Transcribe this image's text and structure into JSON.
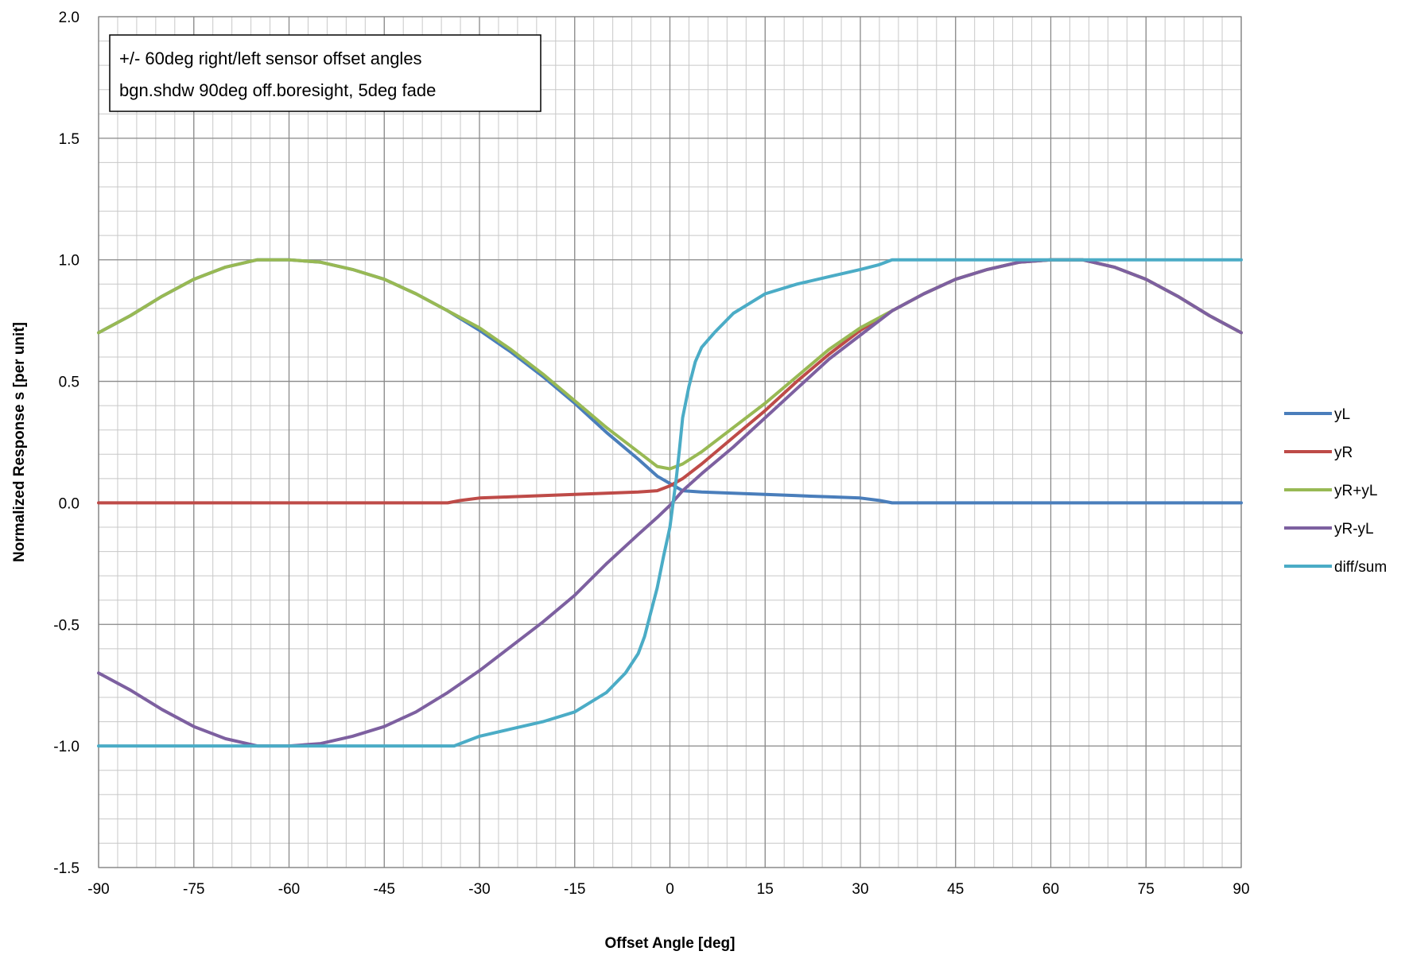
{
  "chart_data": {
    "type": "line",
    "title": "",
    "xlabel": "Offset Angle  [deg]",
    "ylabel": "Normalized Response s [per unit]",
    "xlim": [
      -90,
      90
    ],
    "ylim": [
      -1.5,
      2.0
    ],
    "x_ticks": [
      -90,
      -75,
      -60,
      -45,
      -30,
      -15,
      0,
      15,
      30,
      45,
      60,
      75,
      90
    ],
    "x_tick_labels": [
      "-90",
      "-75",
      "-60",
      "-45",
      "-30",
      "-15",
      "0",
      "15",
      "30",
      "45",
      "60",
      "75",
      "90"
    ],
    "y_ticks": [
      -1.5,
      -1.0,
      -0.5,
      0.0,
      0.5,
      1.0,
      1.5,
      2.0
    ],
    "y_tick_labels": [
      "-1.5",
      "-1.0",
      "-0.5",
      "0.0",
      "0.5",
      "1.0",
      "1.5",
      "2.0"
    ],
    "grid": true,
    "legend_position": "right",
    "annotation": [
      "+/- 60deg right/left sensor offset angles",
      "bgn.shdw 90deg off.boresight, 5deg fade"
    ],
    "series": [
      {
        "name": "yL",
        "color": "#4a7ebb",
        "x": [
          -90,
          -85,
          -80,
          -75,
          -70,
          -65,
          -60,
          -55,
          -50,
          -45,
          -40,
          -35,
          -30,
          -25,
          -20,
          -15,
          -10,
          -5,
          -2,
          0,
          2,
          5,
          10,
          15,
          20,
          25,
          30,
          33,
          35,
          40,
          50,
          60,
          70,
          80,
          90
        ],
        "y": [
          0.7,
          0.77,
          0.85,
          0.92,
          0.97,
          1.0,
          1.0,
          0.99,
          0.96,
          0.92,
          0.86,
          0.79,
          0.71,
          0.62,
          0.52,
          0.41,
          0.29,
          0.18,
          0.11,
          0.08,
          0.05,
          0.045,
          0.04,
          0.035,
          0.03,
          0.025,
          0.02,
          0.01,
          0.0,
          0.0,
          0.0,
          0.0,
          0.0,
          0.0,
          0.0
        ]
      },
      {
        "name": "yR",
        "color": "#be4b48",
        "x": [
          -90,
          -40,
          -35,
          -33,
          -30,
          -25,
          -20,
          -15,
          -10,
          -5,
          -2,
          0,
          2,
          5,
          10,
          15,
          20,
          25,
          30,
          35,
          40,
          45,
          50,
          55,
          60,
          65,
          70,
          75,
          80,
          85,
          90
        ],
        "y": [
          0.0,
          0.0,
          0.0,
          0.01,
          0.02,
          0.025,
          0.03,
          0.035,
          0.04,
          0.045,
          0.05,
          0.07,
          0.1,
          0.16,
          0.27,
          0.38,
          0.5,
          0.61,
          0.71,
          0.79,
          0.86,
          0.92,
          0.96,
          0.99,
          1.0,
          1.0,
          0.97,
          0.92,
          0.85,
          0.77,
          0.7
        ]
      },
      {
        "name": "yR+yL",
        "color": "#98b954",
        "x": [
          -90,
          -85,
          -80,
          -75,
          -70,
          -65,
          -60,
          -55,
          -50,
          -45,
          -40,
          -35,
          -30,
          -25,
          -20,
          -15,
          -10,
          -5,
          -2,
          0,
          2,
          5,
          10,
          15,
          20,
          25,
          30,
          35,
          40,
          45,
          50,
          55,
          60,
          65,
          70,
          75,
          80,
          85,
          90
        ],
        "y": [
          0.7,
          0.77,
          0.85,
          0.92,
          0.97,
          1.0,
          1.0,
          0.99,
          0.96,
          0.92,
          0.86,
          0.79,
          0.72,
          0.63,
          0.53,
          0.42,
          0.31,
          0.21,
          0.15,
          0.14,
          0.16,
          0.21,
          0.31,
          0.41,
          0.52,
          0.63,
          0.72,
          0.79,
          0.86,
          0.92,
          0.96,
          0.99,
          1.0,
          1.0,
          0.97,
          0.92,
          0.85,
          0.77,
          0.7
        ]
      },
      {
        "name": "yR-yL",
        "color": "#7d60a0",
        "x": [
          -90,
          -85,
          -80,
          -75,
          -70,
          -65,
          -60,
          -55,
          -50,
          -45,
          -40,
          -35,
          -30,
          -25,
          -20,
          -15,
          -10,
          -5,
          -2,
          0,
          2,
          5,
          10,
          15,
          20,
          25,
          30,
          35,
          40,
          45,
          50,
          55,
          60,
          65,
          70,
          75,
          80,
          85,
          90
        ],
        "y": [
          -0.7,
          -0.77,
          -0.85,
          -0.92,
          -0.97,
          -1.0,
          -1.0,
          -0.99,
          -0.96,
          -0.92,
          -0.86,
          -0.78,
          -0.69,
          -0.59,
          -0.49,
          -0.38,
          -0.25,
          -0.13,
          -0.06,
          -0.01,
          0.05,
          0.12,
          0.23,
          0.35,
          0.47,
          0.59,
          0.69,
          0.79,
          0.86,
          0.92,
          0.96,
          0.99,
          1.0,
          1.0,
          0.97,
          0.92,
          0.85,
          0.77,
          0.7
        ]
      },
      {
        "name": "diff/sum",
        "color": "#4bacc6",
        "x": [
          -90,
          -60,
          -40,
          -34,
          -32,
          -30,
          -25,
          -20,
          -15,
          -10,
          -7,
          -5,
          -4,
          -3,
          -2,
          -1,
          0,
          0.5,
          1,
          1.5,
          2,
          3,
          4,
          5,
          7,
          10,
          15,
          20,
          25,
          30,
          33,
          35,
          40,
          60,
          90
        ],
        "y": [
          -1.0,
          -1.0,
          -1.0,
          -1.0,
          -0.98,
          -0.96,
          -0.93,
          -0.9,
          -0.86,
          -0.78,
          -0.7,
          -0.62,
          -0.55,
          -0.45,
          -0.35,
          -0.22,
          -0.1,
          0.0,
          0.1,
          0.22,
          0.35,
          0.48,
          0.58,
          0.64,
          0.7,
          0.78,
          0.86,
          0.9,
          0.93,
          0.96,
          0.98,
          1.0,
          1.0,
          1.0,
          1.0
        ]
      }
    ]
  }
}
